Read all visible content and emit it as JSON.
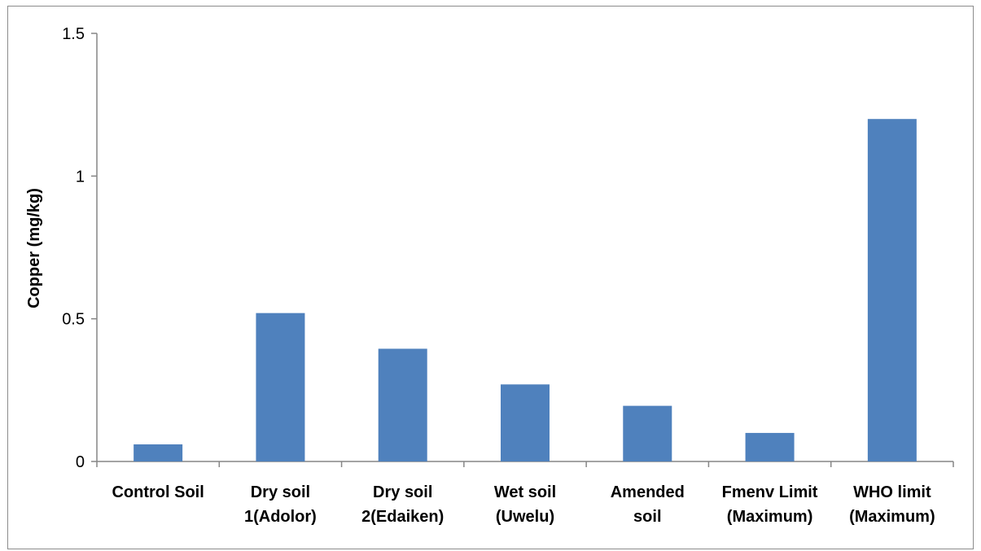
{
  "chart_data": {
    "type": "bar",
    "title": "",
    "xlabel": "",
    "ylabel": "Copper (mg/kg)",
    "ylim": [
      0,
      1.5
    ],
    "yticks": [
      0,
      0.5,
      1,
      1.5
    ],
    "ytick_labels": [
      "0",
      "0.5",
      "1",
      "1.5"
    ],
    "grid": false,
    "legend": "none",
    "bar_color": "#4F81BD",
    "categories": [
      [
        "Control Soil"
      ],
      [
        "Dry soil",
        "1(Adolor)"
      ],
      [
        "Dry soil",
        "2(Edaiken)"
      ],
      [
        "Wet soil",
        "(Uwelu)"
      ],
      [
        "Amended",
        "soil"
      ],
      [
        "Fmenv Limit",
        "(Maximum)"
      ],
      [
        "WHO limit",
        "(Maximum)"
      ]
    ],
    "values": [
      0.06,
      0.52,
      0.395,
      0.27,
      0.195,
      0.1,
      1.2
    ]
  }
}
